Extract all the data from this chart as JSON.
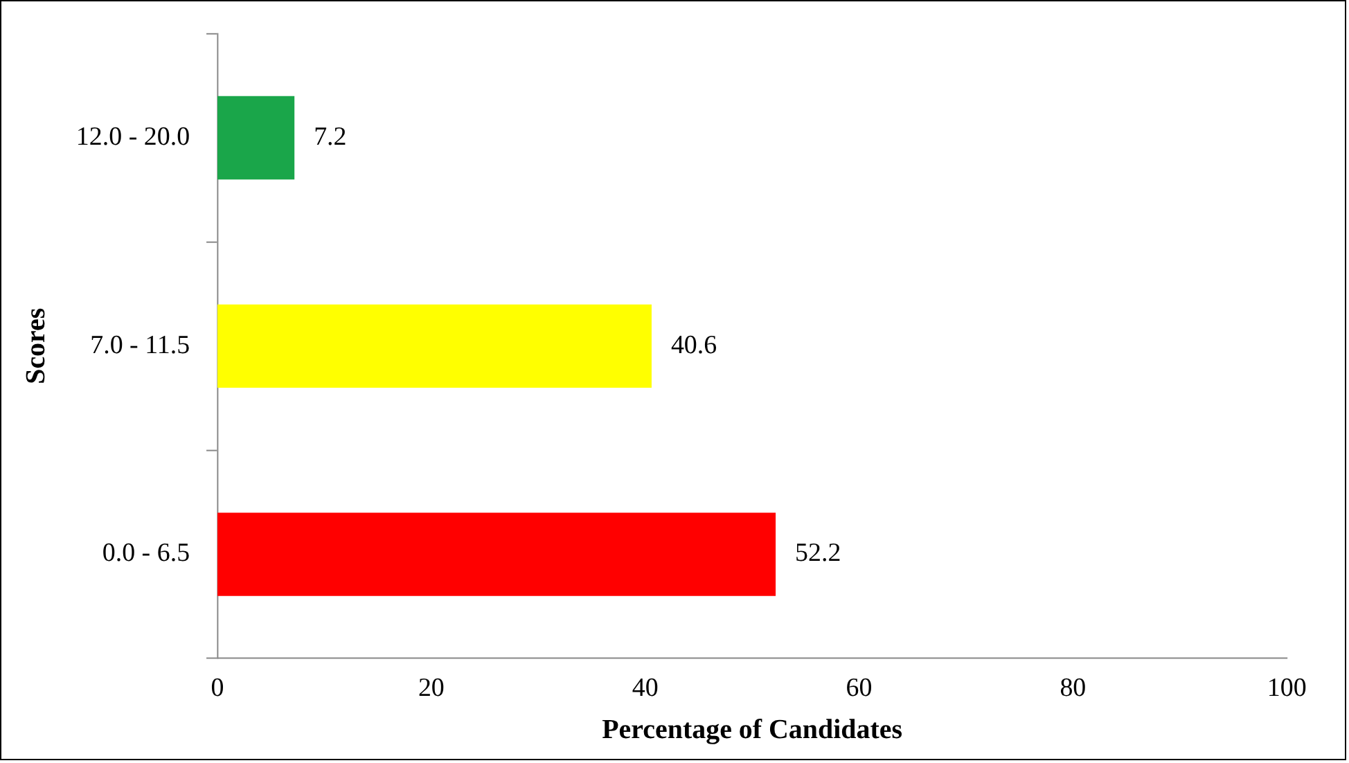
{
  "chart_data": {
    "type": "bar",
    "orientation": "horizontal",
    "xlabel": "Percentage of Candidates",
    "ylabel": "Scores",
    "categories": [
      "12.0 - 20.0",
      "7.0 - 11.5",
      "0.0 - 6.5"
    ],
    "values": [
      7.2,
      40.6,
      52.2
    ],
    "colors": [
      "#1aa64a",
      "#ffff00",
      "#ff0000"
    ],
    "xlim": [
      0,
      100
    ],
    "xticks": [
      0,
      20,
      40,
      60,
      80,
      100
    ],
    "grid": false,
    "legend": false,
    "data_labels": true
  }
}
